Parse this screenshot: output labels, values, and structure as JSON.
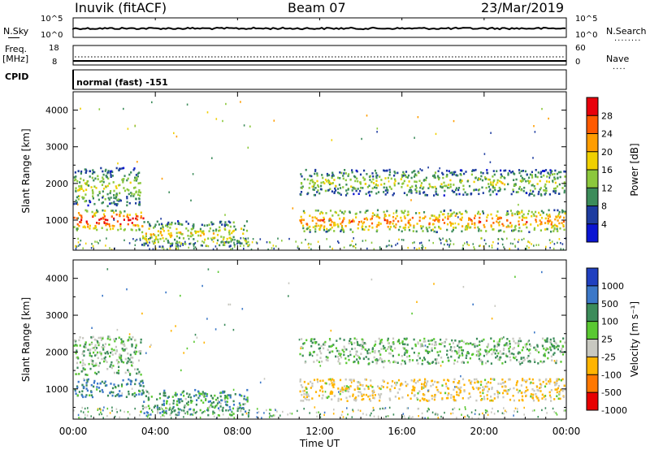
{
  "header": {
    "station": "Inuvik (fitACF)",
    "beam": "Beam 07",
    "date": "23/Mar/2019"
  },
  "top_panels": {
    "nsky_label": "N.Sky",
    "nsky_ticks": [
      "10^5",
      "10^0"
    ],
    "nsearch_label": "N.Search",
    "nsearch_ticks": [
      "10^5",
      "10^0"
    ],
    "freq_label": "Freq.",
    "freq_unit": "[MHz]",
    "freq_ticks": [
      "18",
      "8"
    ],
    "nave_label": "Nave",
    "nave_ticks": [
      "60",
      "0"
    ],
    "cpid_label": "CPID",
    "cpid_value": "normal (fast) -151"
  },
  "power_panel": {
    "ylabel": "Slant Range [km]",
    "yticks": [
      "4000",
      "3000",
      "2000",
      "1000"
    ],
    "colorbar_label": "Power [dB]",
    "colorbar_ticks": [
      "28",
      "24",
      "20",
      "16",
      "12",
      "8",
      "4"
    ],
    "colorbar_colors": [
      "#e8000b",
      "#ff5a00",
      "#ff9d00",
      "#f0d000",
      "#8cc83c",
      "#3c8c5a",
      "#1e3ca0",
      "#0a14d2"
    ]
  },
  "velocity_panel": {
    "ylabel": "Slant Range [km]",
    "yticks": [
      "4000",
      "3000",
      "2000",
      "1000"
    ],
    "colorbar_label": "Velocity [m s⁻¹]",
    "colorbar_ticks": [
      "1000",
      "500",
      "100",
      "25",
      "-25",
      "-100",
      "-500",
      "-1000"
    ],
    "colorbar_colors": [
      "#2040c0",
      "#3c78c8",
      "#3c8c5a",
      "#5ac832",
      "#c8c8c0",
      "#ffb400",
      "#ff7800",
      "#e80000"
    ]
  },
  "xaxis": {
    "label": "Time UT",
    "ticks": [
      "00:00",
      "04:00",
      "08:00",
      "12:00",
      "16:00",
      "20:00",
      "00:00"
    ]
  },
  "chart_data": [
    {
      "type": "heatmap",
      "title": "Power",
      "xlabel": "Time UT",
      "ylabel": "Slant Range [km]",
      "x_range_hours": [
        0,
        24
      ],
      "ylim": [
        180,
        4500
      ],
      "colorbar": "Power [dB]",
      "colorbar_range": [
        0,
        30
      ],
      "scatter_regions": [
        {
          "t_start": 0.0,
          "t_end": 3.4,
          "range_low": 750,
          "range_high": 1300,
          "power_db": 28
        },
        {
          "t_start": 0.0,
          "t_end": 3.3,
          "range_low": 1400,
          "range_high": 2450,
          "power_db": 14
        },
        {
          "t_start": 3.3,
          "t_end": 8.5,
          "range_low": 300,
          "range_high": 1000,
          "power_db": 16
        },
        {
          "t_start": 11.0,
          "t_end": 23.9,
          "range_low": 700,
          "range_high": 1300,
          "power_db": 22
        },
        {
          "t_start": 11.0,
          "t_end": 23.9,
          "range_low": 1700,
          "range_high": 2400,
          "power_db": 14
        }
      ]
    },
    {
      "type": "heatmap",
      "title": "Velocity",
      "xlabel": "Time UT",
      "ylabel": "Slant Range [km]",
      "x_range_hours": [
        0,
        24
      ],
      "ylim": [
        180,
        4500
      ],
      "colorbar": "Velocity [m s⁻¹]",
      "colorbar_range": [
        -1000,
        1000
      ],
      "scatter_regions": [
        {
          "t_start": 0.0,
          "t_end": 3.4,
          "range_low": 800,
          "range_high": 1300,
          "velocity": 100
        },
        {
          "t_start": 0.0,
          "t_end": 3.3,
          "range_low": 1400,
          "range_high": 2450,
          "velocity": 0
        },
        {
          "t_start": 3.3,
          "t_end": 8.5,
          "range_low": 300,
          "range_high": 1000,
          "velocity": 50
        },
        {
          "t_start": 11.0,
          "t_end": 23.9,
          "range_low": 700,
          "range_high": 1300,
          "velocity": -100
        },
        {
          "t_start": 11.0,
          "t_end": 23.9,
          "range_low": 1700,
          "range_high": 2400,
          "velocity": 0
        }
      ]
    }
  ]
}
